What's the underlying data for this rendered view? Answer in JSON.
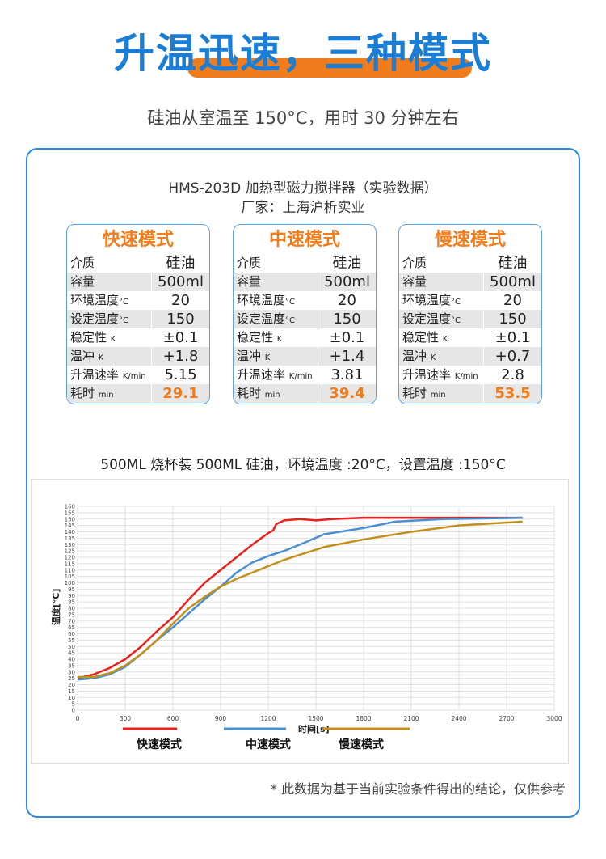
{
  "header": {
    "title": "升温迅速，三种模式",
    "subtitle": "硅油从室温至 150°C，用时 30 分钟左右"
  },
  "card": {
    "line1": "HMS-203D 加热型磁力搅拌器（实验数据）",
    "line2": "厂家：上海沪析实业"
  },
  "tables": [
    {
      "title": "快速模式",
      "rows": [
        [
          "介质",
          "",
          "硅油"
        ],
        [
          "容量",
          "",
          "500ml"
        ],
        [
          "环境温度",
          "°C",
          "20"
        ],
        [
          "设定温度",
          "°C",
          "150"
        ],
        [
          "稳定性 ",
          "K",
          "±0.1"
        ],
        [
          "温冲 ",
          "K",
          "+1.8"
        ],
        [
          "升温速率 ",
          "K/min",
          "5.15"
        ],
        [
          "耗时 ",
          "min",
          "29.1"
        ]
      ]
    },
    {
      "title": "中速模式",
      "rows": [
        [
          "介质",
          "",
          "硅油"
        ],
        [
          "容量",
          "",
          "500ml"
        ],
        [
          "环境温度",
          "°C",
          "20"
        ],
        [
          "设定温度",
          "°C",
          "150"
        ],
        [
          "稳定性 ",
          "K",
          "±0.1"
        ],
        [
          "温冲 ",
          "K",
          "+1.4"
        ],
        [
          "升温速率 ",
          "K/min",
          "3.81"
        ],
        [
          "耗时 ",
          "min",
          "39.4"
        ]
      ]
    },
    {
      "title": "慢速模式",
      "rows": [
        [
          "介质",
          "",
          "硅油"
        ],
        [
          "容量",
          "",
          "500ml"
        ],
        [
          "环境温度",
          "°C",
          "20"
        ],
        [
          "设定温度",
          "°C",
          "150"
        ],
        [
          "稳定性 ",
          "K",
          "±0.1"
        ],
        [
          "温冲 ",
          "K",
          "+0.7"
        ],
        [
          "升温速率 ",
          "K/min",
          "2.8"
        ],
        [
          "耗时 ",
          "min",
          "53.5"
        ]
      ]
    }
  ],
  "chart_title": "500ML 烧杯装 500ML 硅油，环境温度 :20°C，设置温度 :150°C",
  "chart_data": {
    "type": "line",
    "xlabel": "时间[s]",
    "ylabel": "温度[℃]",
    "xlim": [
      0,
      3000
    ],
    "ylim": [
      0,
      160
    ],
    "xticks": [
      0,
      300,
      600,
      900,
      1200,
      1500,
      1800,
      2100,
      2400,
      2700,
      3000
    ],
    "yticks": [
      0,
      5,
      10,
      15,
      20,
      25,
      30,
      35,
      40,
      45,
      50,
      55,
      60,
      65,
      70,
      75,
      80,
      85,
      90,
      95,
      100,
      105,
      110,
      115,
      120,
      125,
      130,
      135,
      140,
      145,
      150,
      155,
      160
    ],
    "grid": true,
    "legend": "bottom",
    "series": [
      {
        "name": "快速模式",
        "color": "#e8201e",
        "points": [
          [
            0,
            25
          ],
          [
            100,
            28
          ],
          [
            200,
            33
          ],
          [
            300,
            40
          ],
          [
            400,
            50
          ],
          [
            500,
            62
          ],
          [
            600,
            73
          ],
          [
            700,
            87
          ],
          [
            800,
            100
          ],
          [
            900,
            110
          ],
          [
            1000,
            120
          ],
          [
            1100,
            130
          ],
          [
            1200,
            139
          ],
          [
            1230,
            141
          ],
          [
            1250,
            146
          ],
          [
            1300,
            149
          ],
          [
            1400,
            150
          ],
          [
            1500,
            149
          ],
          [
            1600,
            150
          ],
          [
            1800,
            151
          ],
          [
            2100,
            151
          ],
          [
            2400,
            151
          ],
          [
            2800,
            151
          ]
        ]
      },
      {
        "name": "中速模式",
        "color": "#4a90d0",
        "points": [
          [
            0,
            24
          ],
          [
            100,
            25
          ],
          [
            200,
            28
          ],
          [
            300,
            34
          ],
          [
            400,
            44
          ],
          [
            500,
            55
          ],
          [
            600,
            65
          ],
          [
            700,
            76
          ],
          [
            800,
            87
          ],
          [
            900,
            97
          ],
          [
            1000,
            108
          ],
          [
            1100,
            116
          ],
          [
            1200,
            121
          ],
          [
            1300,
            125
          ],
          [
            1400,
            130
          ],
          [
            1550,
            138
          ],
          [
            1800,
            143
          ],
          [
            2000,
            148
          ],
          [
            2300,
            150
          ],
          [
            2800,
            151
          ]
        ]
      },
      {
        "name": "慢速模式",
        "color": "#c0901a",
        "points": [
          [
            0,
            26
          ],
          [
            100,
            26
          ],
          [
            200,
            29
          ],
          [
            300,
            35
          ],
          [
            400,
            44
          ],
          [
            500,
            55
          ],
          [
            600,
            68
          ],
          [
            700,
            80
          ],
          [
            800,
            89
          ],
          [
            900,
            97
          ],
          [
            1000,
            103
          ],
          [
            1100,
            108
          ],
          [
            1200,
            113
          ],
          [
            1300,
            118
          ],
          [
            1400,
            122
          ],
          [
            1550,
            128
          ],
          [
            1800,
            134
          ],
          [
            2100,
            140
          ],
          [
            2400,
            145
          ],
          [
            2800,
            148
          ]
        ]
      }
    ]
  },
  "note": "* 此数据为基于当前实验条件得出的结论，仅供参考"
}
